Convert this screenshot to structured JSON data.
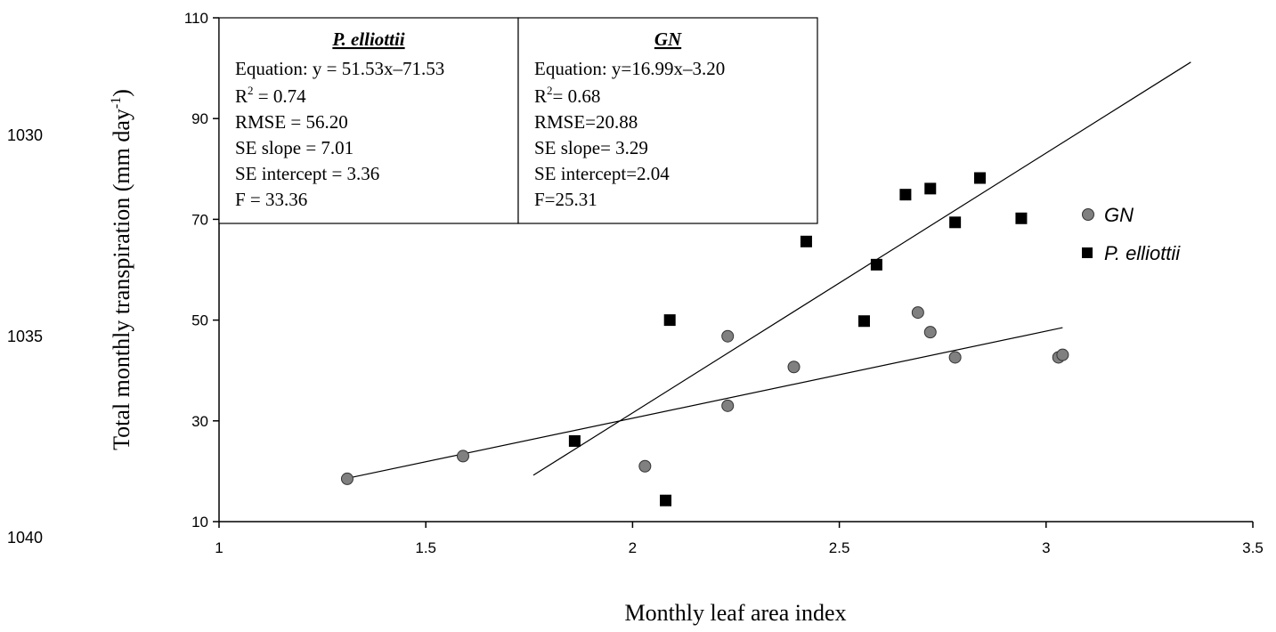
{
  "margin_numbers": [
    "1030",
    "1035",
    "1040"
  ],
  "stats_boxes": [
    {
      "heading": "P. elliottii",
      "lines": [
        "Equation: y = 51.53x–71.53",
        "R",
        "2",
        " = 0.74",
        "RMSE = 56.20",
        "SE slope = 7.01",
        "SE intercept = 3.36",
        "F = 33.36"
      ]
    },
    {
      "heading": "GN",
      "lines": [
        "Equation: y=16.99x–3.20",
        "R",
        "2",
        "= 0.68",
        "RMSE=20.88",
        "SE slope= 3.29",
        "SE intercept=2.04",
        "F=25.31"
      ]
    }
  ],
  "chart_data": {
    "type": "scatter",
    "xlabel": "Monthly leaf area index",
    "ylabel": "Total monthly transpiration (mm day",
    "ylabel_sup": "-1",
    "ylabel_end": ")",
    "xlim": [
      1,
      3.5
    ],
    "ylim": [
      10,
      110
    ],
    "xticks": [
      1,
      1.5,
      2,
      2.5,
      3,
      3.5
    ],
    "yticks": [
      10,
      30,
      50,
      70,
      90,
      110
    ],
    "xtick_labels": [
      "1",
      "1.5",
      "2",
      "2.5",
      "3",
      "3.5"
    ],
    "ytick_labels": [
      "10",
      "30",
      "50",
      "70",
      "90",
      "110"
    ],
    "grid": false,
    "legend": "right",
    "series": [
      {
        "name": "GN",
        "marker": "circle",
        "color": "#808080",
        "points": [
          [
            1.31,
            18.5
          ],
          [
            1.59,
            23.0
          ],
          [
            2.03,
            21.0
          ],
          [
            2.23,
            33.0
          ],
          [
            2.23,
            46.8
          ],
          [
            2.39,
            40.7
          ],
          [
            2.69,
            51.5
          ],
          [
            2.72,
            47.6
          ],
          [
            2.78,
            42.6
          ],
          [
            3.03,
            42.6
          ],
          [
            3.04,
            43.1
          ]
        ],
        "trendline": [
          [
            1.31,
            18.6
          ],
          [
            3.04,
            48.5
          ]
        ]
      },
      {
        "name": "P. elliottii",
        "marker": "square",
        "color": "#000000",
        "points": [
          [
            1.86,
            26.0
          ],
          [
            2.08,
            14.2
          ],
          [
            2.09,
            50.0
          ],
          [
            2.42,
            65.6
          ],
          [
            2.56,
            49.8
          ],
          [
            2.59,
            61.0
          ],
          [
            2.66,
            74.9
          ],
          [
            2.72,
            76.1
          ],
          [
            2.78,
            69.4
          ],
          [
            2.84,
            78.2
          ],
          [
            2.94,
            70.2
          ]
        ],
        "trendline": [
          [
            1.76,
            19.2
          ],
          [
            3.35,
            101.2
          ]
        ]
      }
    ]
  }
}
